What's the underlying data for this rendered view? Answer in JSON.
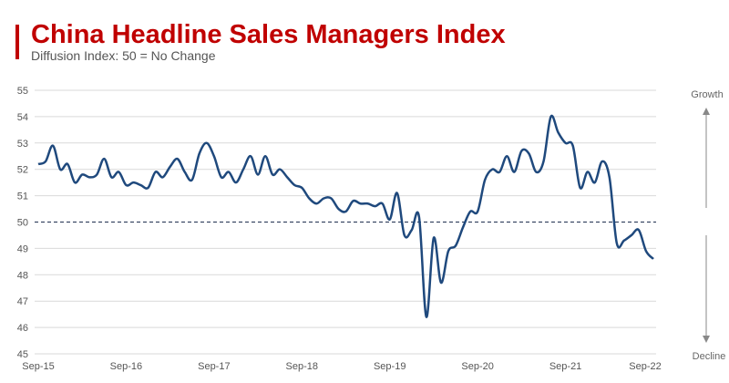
{
  "chart_data": {
    "type": "line",
    "title": "China Headline Sales Managers Index",
    "subtitle": "Diffusion Index: 50 = No Change",
    "xlabel": "",
    "ylabel": "",
    "ylim": [
      45,
      55
    ],
    "yticks": [
      "45",
      "46",
      "47",
      "48",
      "49",
      "50",
      "51",
      "52",
      "53",
      "54",
      "55"
    ],
    "xticks": [
      "Sep-15",
      "Sep-16",
      "Sep-17",
      "Sep-18",
      "Sep-19",
      "Sep-20",
      "Sep-21",
      "Sep-22"
    ],
    "grid": true,
    "reference_line": 50,
    "side_labels": {
      "top": "Growth",
      "bottom": "Decline"
    },
    "line_color": "#1f497d",
    "title_color": "#c00000",
    "x_start": "Sep-15",
    "x_end": "Sep-22",
    "frequency": "monthly",
    "values": [
      52.2,
      52.3,
      52.9,
      52.0,
      52.2,
      51.5,
      51.8,
      51.7,
      51.8,
      52.4,
      51.7,
      51.9,
      51.4,
      51.5,
      51.4,
      51.3,
      51.9,
      51.7,
      52.1,
      52.4,
      51.9,
      51.6,
      52.6,
      53.0,
      52.5,
      51.7,
      51.9,
      51.5,
      52.0,
      52.5,
      51.8,
      52.5,
      51.8,
      52.0,
      51.7,
      51.4,
      51.3,
      50.9,
      50.7,
      50.9,
      50.9,
      50.5,
      50.4,
      50.8,
      50.7,
      50.7,
      50.6,
      50.7,
      50.1,
      51.1,
      49.5,
      49.7,
      50.2,
      46.4,
      49.4,
      47.7,
      48.9,
      49.1,
      49.8,
      50.4,
      50.4,
      51.6,
      52.0,
      51.9,
      52.5,
      51.9,
      52.7,
      52.6,
      51.9,
      52.3,
      54.0,
      53.4,
      53.0,
      52.9,
      51.3,
      51.9,
      51.5,
      52.3,
      51.7,
      49.2,
      49.3,
      49.5,
      49.7,
      48.9,
      48.6
    ]
  }
}
